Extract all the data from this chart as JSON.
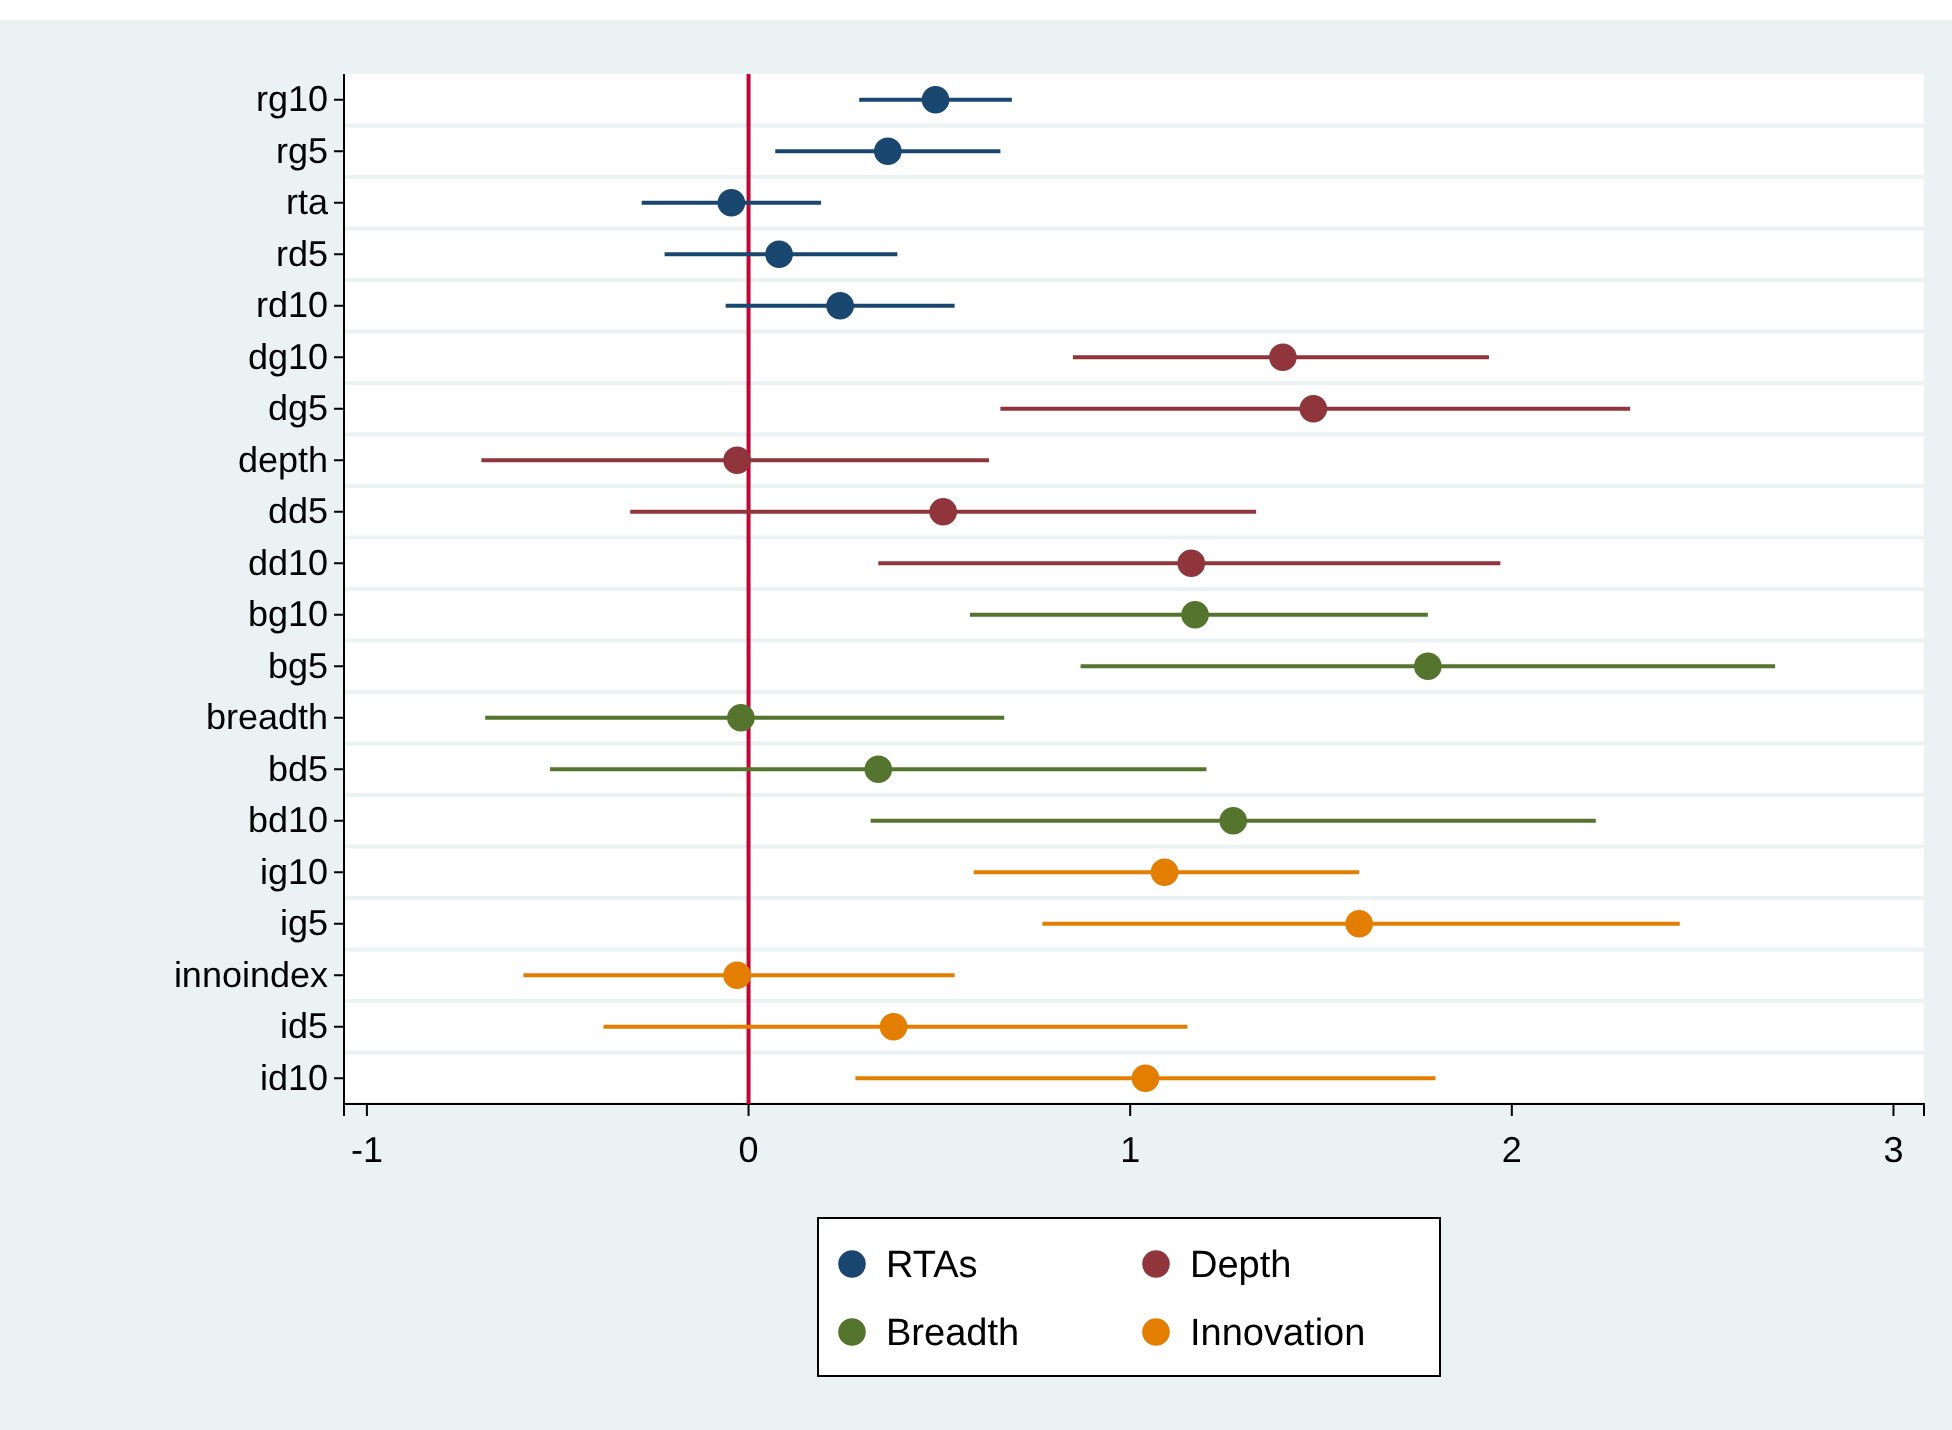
{
  "chart_data": {
    "type": "scatter",
    "orientation": "horizontal",
    "categories": [
      "rg10",
      "rg5",
      "rta",
      "rd5",
      "rd10",
      "dg10",
      "dg5",
      "depth",
      "dd5",
      "dd10",
      "bg10",
      "bg5",
      "breadth",
      "bd5",
      "bd10",
      "ig10",
      "ig5",
      "innoindex",
      "id5",
      "id10"
    ],
    "series": [
      {
        "name": "RTAs",
        "color": "#1a476f",
        "values": [
          0.49,
          0.365,
          -0.045,
          0.08,
          0.24,
          null,
          null,
          null,
          null,
          null,
          null,
          null,
          null,
          null,
          null,
          null,
          null,
          null,
          null,
          null
        ],
        "errors": [
          [
            0.29,
            0.69
          ],
          [
            0.07,
            0.66
          ],
          [
            -0.28,
            0.19
          ],
          [
            -0.22,
            0.39
          ],
          [
            -0.06,
            0.54
          ],
          null,
          null,
          null,
          null,
          null,
          null,
          null,
          null,
          null,
          null,
          null,
          null,
          null,
          null,
          null
        ]
      },
      {
        "name": "Depth",
        "color": "#90353b",
        "values": [
          null,
          null,
          null,
          null,
          null,
          1.4,
          1.48,
          -0.03,
          0.51,
          1.16,
          null,
          null,
          null,
          null,
          null,
          null,
          null,
          null,
          null,
          null
        ],
        "errors": [
          null,
          null,
          null,
          null,
          null,
          [
            0.85,
            1.94
          ],
          [
            0.66,
            2.31
          ],
          [
            -0.7,
            0.63
          ],
          [
            -0.31,
            1.33
          ],
          [
            0.34,
            1.97
          ],
          null,
          null,
          null,
          null,
          null,
          null,
          null,
          null,
          null,
          null
        ]
      },
      {
        "name": "Breadth",
        "color": "#55752f",
        "values": [
          null,
          null,
          null,
          null,
          null,
          null,
          null,
          null,
          null,
          null,
          1.17,
          1.78,
          -0.02,
          0.34,
          1.27,
          null,
          null,
          null,
          null,
          null
        ],
        "errors": [
          null,
          null,
          null,
          null,
          null,
          null,
          null,
          null,
          null,
          null,
          [
            0.58,
            1.78
          ],
          [
            0.87,
            2.69
          ],
          [
            -0.69,
            0.67
          ],
          [
            -0.52,
            1.2
          ],
          [
            0.32,
            2.22
          ],
          null,
          null,
          null,
          null,
          null
        ]
      },
      {
        "name": "Innovation",
        "color": "#e37e00",
        "values": [
          null,
          null,
          null,
          null,
          null,
          null,
          null,
          null,
          null,
          null,
          null,
          null,
          null,
          null,
          null,
          1.09,
          1.6,
          -0.03,
          0.38,
          1.04
        ],
        "errors": [
          null,
          null,
          null,
          null,
          null,
          null,
          null,
          null,
          null,
          null,
          null,
          null,
          null,
          null,
          null,
          [
            0.59,
            1.6
          ],
          [
            0.77,
            2.44
          ],
          [
            -0.59,
            0.54
          ],
          [
            -0.38,
            1.15
          ],
          [
            0.28,
            1.8
          ]
        ]
      }
    ],
    "xlim": [
      -1.06,
      3.08
    ],
    "xticks": [
      -1,
      0,
      1,
      2,
      3
    ],
    "ref_lines": [
      {
        "axis": "x",
        "value": 0,
        "color": "#c10534"
      }
    ],
    "grid": "y",
    "legend": "bottom",
    "marker": "circle"
  }
}
